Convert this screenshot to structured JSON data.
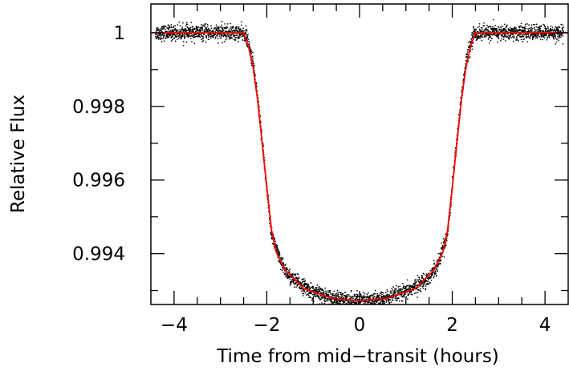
{
  "chart_data": {
    "type": "scatter",
    "title": "",
    "xlabel": "Time from mid−transit (hours)",
    "ylabel": "Relative Flux",
    "xlim": [
      -4.5,
      4.5
    ],
    "ylim": [
      0.99262,
      1.00078
    ],
    "x_ticks": [
      -4,
      -2,
      0,
      2,
      4
    ],
    "x_tick_labels": [
      "−4",
      "−2",
      "0",
      "2",
      "4"
    ],
    "y_ticks": [
      0.994,
      0.996,
      0.998,
      1.0
    ],
    "y_tick_labels": [
      "0.994",
      "0.996",
      "0.998",
      "1"
    ],
    "x_minor_step": 0.5,
    "y_minor_step": 0.001,
    "grid": false,
    "legend": "none",
    "series": [
      {
        "kind": "scatter",
        "color": "#000000",
        "x": [
          -4.4,
          -4.0,
          -3.5,
          -3.0,
          -2.6,
          -2.45,
          -2.3,
          -2.2,
          -2.1,
          -2.0,
          -1.9,
          -1.7,
          -1.5,
          -1.0,
          -0.5,
          0.0,
          0.5,
          1.0,
          1.5,
          1.7,
          1.9,
          2.0,
          2.1,
          2.2,
          2.3,
          2.45,
          2.6,
          3.0,
          3.5,
          4.0,
          4.4
        ],
        "y": [
          1.0,
          1.0,
          1.0,
          1.0,
          1.0,
          0.99995,
          0.9992,
          0.9983,
          0.9971,
          0.9958,
          0.99455,
          0.99375,
          0.99335,
          0.99295,
          0.99277,
          0.99272,
          0.99277,
          0.99295,
          0.99335,
          0.99375,
          0.99455,
          0.9958,
          0.9971,
          0.9983,
          0.9992,
          0.99995,
          1.0,
          1.0,
          1.0,
          1.0,
          1.0
        ],
        "noise": 0.0001
      },
      {
        "kind": "line",
        "color": "#ff0000",
        "x": [
          -4.5,
          -2.5,
          -2.4,
          -2.3,
          -2.2,
          -2.1,
          -2.0,
          -1.9,
          -1.8,
          -1.6,
          -1.2,
          -0.6,
          0.0,
          0.6,
          1.2,
          1.6,
          1.8,
          1.9,
          2.0,
          2.1,
          2.2,
          2.3,
          2.4,
          2.5,
          4.5
        ],
        "y": [
          1.0,
          1.0,
          0.99965,
          0.9991,
          0.9982,
          0.997,
          0.9958,
          0.99465,
          0.99405,
          0.99355,
          0.99305,
          0.99279,
          0.99272,
          0.99279,
          0.99305,
          0.99355,
          0.99405,
          0.99465,
          0.9958,
          0.997,
          0.9982,
          0.9991,
          0.99965,
          1.0,
          1.0
        ]
      }
    ]
  }
}
